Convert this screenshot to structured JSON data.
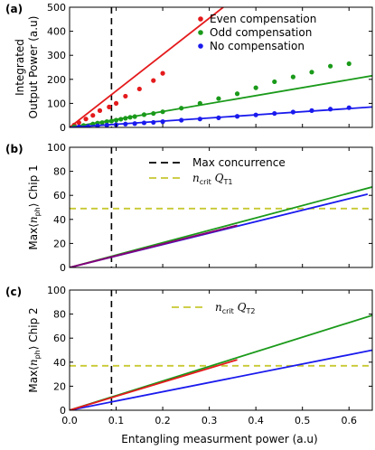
{
  "chart_data": [
    {
      "type": "scatter",
      "panel_label": "(a)",
      "title": "",
      "xlabel": "",
      "ylabel": "Integrated Output Power (a.u)",
      "ylabel_lines": [
        "Integrated",
        "Output Power (a.u)"
      ],
      "xlim": [
        0,
        0.65
      ],
      "ylim": [
        0,
        500
      ],
      "yticks": [
        0,
        100,
        200,
        300,
        400,
        500
      ],
      "grid": false,
      "legend_position": "top-right",
      "vline_x": 0.09,
      "series": [
        {
          "name": "Even compensation",
          "color": "#e41a1c",
          "points": [
            [
              0.01,
              10
            ],
            [
              0.02,
              20
            ],
            [
              0.035,
              35
            ],
            [
              0.05,
              50
            ],
            [
              0.065,
              70
            ],
            [
              0.085,
              85
            ],
            [
              0.1,
              100
            ],
            [
              0.12,
              130
            ],
            [
              0.15,
              160
            ],
            [
              0.18,
              195
            ],
            [
              0.2,
              225
            ]
          ],
          "fit": [
            [
              0,
              0
            ],
            [
              0.33,
              500
            ]
          ]
        },
        {
          "name": "Odd compensation",
          "color": "#1a9a1a",
          "points": [
            [
              0.01,
              3
            ],
            [
              0.03,
              8
            ],
            [
              0.05,
              14
            ],
            [
              0.06,
              18
            ],
            [
              0.07,
              20
            ],
            [
              0.08,
              24
            ],
            [
              0.09,
              26
            ],
            [
              0.1,
              30
            ],
            [
              0.11,
              34
            ],
            [
              0.12,
              38
            ],
            [
              0.13,
              42
            ],
            [
              0.14,
              45
            ],
            [
              0.16,
              53
            ],
            [
              0.18,
              58
            ],
            [
              0.2,
              65
            ],
            [
              0.24,
              80
            ],
            [
              0.28,
              100
            ],
            [
              0.32,
              120
            ],
            [
              0.36,
              140
            ],
            [
              0.4,
              165
            ],
            [
              0.44,
              190
            ],
            [
              0.48,
              210
            ],
            [
              0.52,
              230
            ],
            [
              0.56,
              255
            ],
            [
              0.6,
              265
            ]
          ],
          "fit": [
            [
              0,
              0
            ],
            [
              0.65,
              215
            ]
          ]
        },
        {
          "name": "No compensation",
          "color": "#1a1aee",
          "points": [
            [
              0.02,
              2
            ],
            [
              0.04,
              4
            ],
            [
              0.06,
              6
            ],
            [
              0.08,
              9
            ],
            [
              0.1,
              11
            ],
            [
              0.12,
              14
            ],
            [
              0.14,
              16
            ],
            [
              0.16,
              19
            ],
            [
              0.18,
              21
            ],
            [
              0.2,
              24
            ],
            [
              0.24,
              30
            ],
            [
              0.28,
              35
            ],
            [
              0.32,
              40
            ],
            [
              0.36,
              46
            ],
            [
              0.4,
              52
            ],
            [
              0.44,
              58
            ],
            [
              0.48,
              64
            ],
            [
              0.52,
              70
            ],
            [
              0.56,
              76
            ],
            [
              0.6,
              82
            ]
          ],
          "fit": [
            [
              0,
              0
            ],
            [
              0.65,
              85
            ]
          ]
        }
      ]
    },
    {
      "type": "line",
      "panel_label": "(b)",
      "title": "",
      "xlabel": "",
      "ylabel": "Max⟨n_ph⟩ Chip 1",
      "ylabel_parts": {
        "pre": "Max⟨",
        "italic": "n",
        "sub": "ph",
        "post": "⟩ Chip 1"
      },
      "xlim": [
        0,
        0.65
      ],
      "ylim": [
        0,
        100
      ],
      "yticks": [
        0,
        20,
        40,
        60,
        80,
        100
      ],
      "grid": false,
      "legend_position": "top-center",
      "vline_x": 0.09,
      "hline_y": 49,
      "legend": [
        {
          "label": "Max concurrence",
          "style": "dashed-black"
        },
        {
          "label_pre": "n",
          "label_sub": "crit",
          "label_mid": " Q",
          "label_sub2": "T1",
          "style": "dashed-yellow"
        }
      ],
      "series": [
        {
          "color": "#1a9a1a",
          "line": [
            [
              0,
              0
            ],
            [
              0.65,
              67
            ]
          ]
        },
        {
          "color": "#1a1aee",
          "line": [
            [
              0,
              0
            ],
            [
              0.64,
              61
            ]
          ]
        },
        {
          "color": "#e41a1c",
          "line": [
            [
              0,
              0
            ],
            [
              0.36,
              35
            ]
          ]
        },
        {
          "color": "#800080",
          "line": [
            [
              0,
              0
            ],
            [
              0.36,
              35
            ]
          ]
        }
      ],
      "colors": {
        "vline": "#000000",
        "hline": "#c8c832"
      }
    },
    {
      "type": "line",
      "panel_label": "(c)",
      "title": "",
      "xlabel": "Entangling measurment power (a.u)",
      "ylabel": "Max⟨n_ph⟩ Chip 2",
      "ylabel_parts": {
        "pre": "Max⟨",
        "italic": "n",
        "sub": "ph",
        "post": "⟩ Chip 2"
      },
      "xlim": [
        0,
        0.65
      ],
      "ylim": [
        0,
        100
      ],
      "xticks": [
        "0.0",
        "0.1",
        "0.2",
        "0.3",
        "0.4",
        "0.5",
        "0.6"
      ],
      "xtick_values": [
        0,
        0.1,
        0.2,
        0.3,
        0.4,
        0.5,
        0.6
      ],
      "yticks": [
        0,
        20,
        40,
        60,
        80,
        100
      ],
      "grid": false,
      "legend_position": "top-center",
      "vline_x": 0.09,
      "hline_y": 37,
      "legend": [
        {
          "label_pre": "n",
          "label_sub": "crit",
          "label_mid": " Q",
          "label_sub2": "T2",
          "style": "dashed-yellow"
        }
      ],
      "series": [
        {
          "color": "#1a9a1a",
          "line": [
            [
              0,
              0
            ],
            [
              0.65,
              79
            ]
          ]
        },
        {
          "color": "#1a1aee",
          "line": [
            [
              0,
              0
            ],
            [
              0.65,
              50
            ]
          ]
        },
        {
          "color": "#e41a1c",
          "line": [
            [
              0,
              0
            ],
            [
              0.36,
              42
            ]
          ]
        }
      ],
      "colors": {
        "vline": "#000000",
        "hline": "#c8c832"
      }
    }
  ]
}
